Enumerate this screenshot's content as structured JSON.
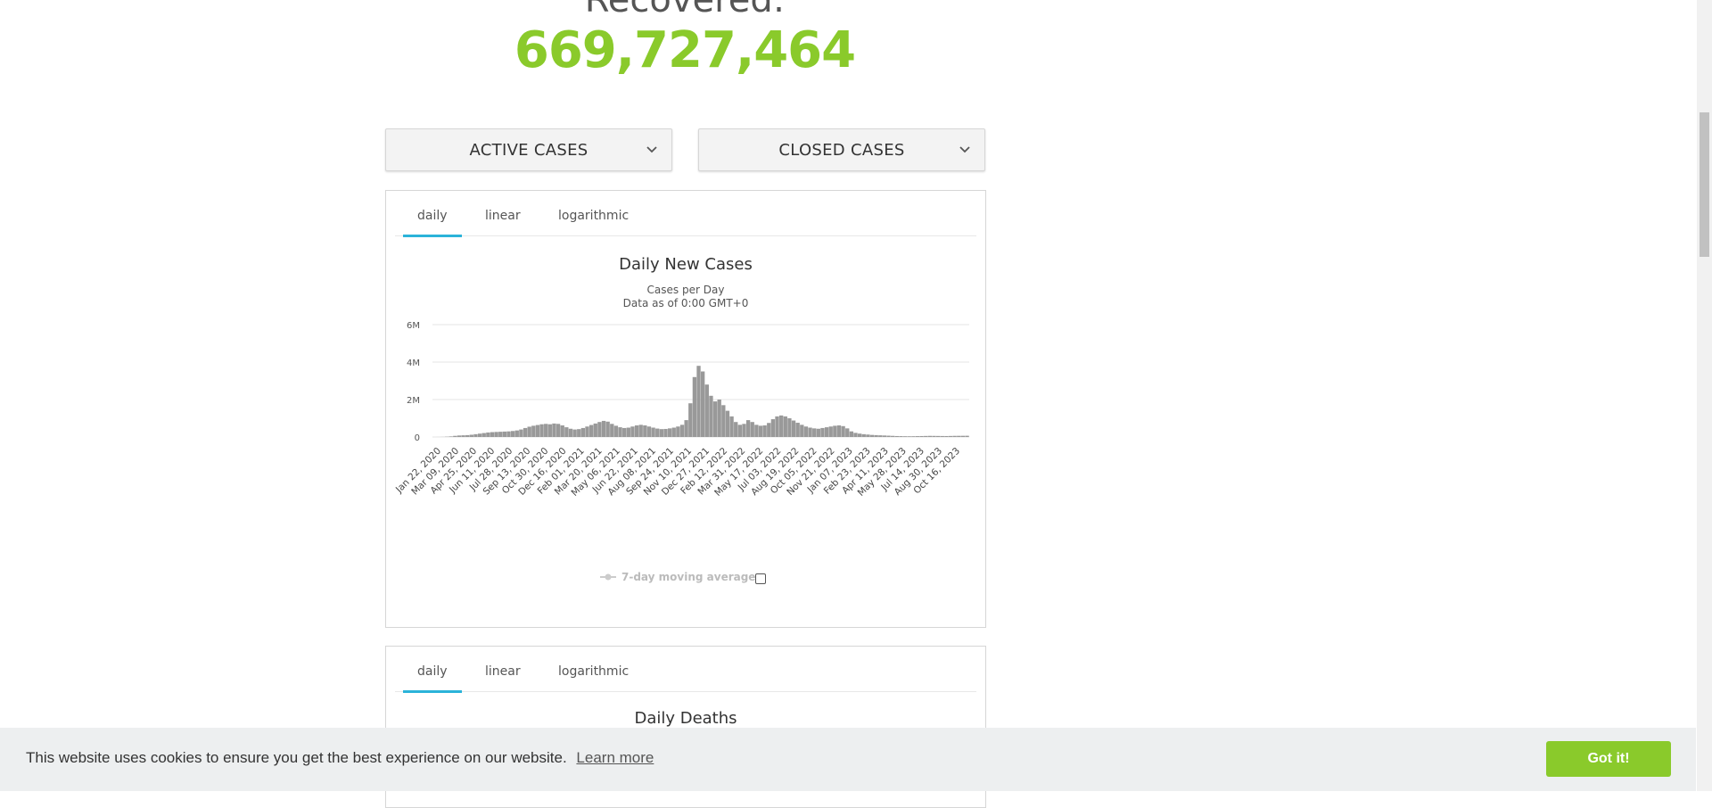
{
  "recovered": {
    "label": "Recovered:",
    "value": "669,727,464",
    "color": "#8ACA2B"
  },
  "dropdowns": {
    "active_cases": "ACTIVE CASES",
    "closed_cases": "CLOSED CASES"
  },
  "cases_panel": {
    "tabs": [
      "daily",
      "linear",
      "logarithmic"
    ],
    "active_tab": "daily",
    "legend": {
      "label": "7-day moving average",
      "checked": false
    }
  },
  "deaths_panel": {
    "tabs": [
      "daily",
      "linear",
      "logarithmic"
    ],
    "active_tab": "daily",
    "title": "Daily Deaths"
  },
  "chart_data": {
    "type": "bar",
    "title": "Daily New Cases",
    "subtitle": [
      "Cases per Day",
      "Data as of 0:00 GMT+0"
    ],
    "xlabel": "",
    "ylabel": "",
    "ylim": [
      0,
      6000000
    ],
    "y_ticks": [
      "0",
      "2M",
      "4M",
      "6M"
    ],
    "y_tick_values": [
      0,
      2000000,
      4000000,
      6000000
    ],
    "grid": true,
    "x_tick_labels": [
      "Jan 22, 2020",
      "Mar 09, 2020",
      "Apr 25, 2020",
      "Jun 11, 2020",
      "Jul 28, 2020",
      "Sep 13, 2020",
      "Oct 30, 2020",
      "Dec 16, 2020",
      "Feb 01, 2021",
      "Mar 20, 2021",
      "May 06, 2021",
      "Jun 22, 2021",
      "Aug 08, 2021",
      "Sep 24, 2021",
      "Nov 10, 2021",
      "Dec 27, 2021",
      "Feb 12, 2022",
      "Mar 31, 2022",
      "May 17, 2022",
      "Jul 03, 2022",
      "Aug 19, 2022",
      "Oct 05, 2022",
      "Nov 21, 2022",
      "Jan 07, 2023",
      "Feb 23, 2023",
      "Apr 11, 2023",
      "May 28, 2023",
      "Jul 14, 2023",
      "Aug 30, 2023",
      "Oct 16, 2023"
    ],
    "series": [
      {
        "color": "#999999",
        "values": [
          0,
          2000,
          5000,
          15000,
          30000,
          60000,
          80000,
          90000,
          100000,
          120000,
          150000,
          180000,
          210000,
          240000,
          260000,
          270000,
          280000,
          290000,
          300000,
          320000,
          350000,
          400000,
          480000,
          550000,
          600000,
          640000,
          680000,
          700000,
          680000,
          720000,
          700000,
          620000,
          520000,
          440000,
          400000,
          420000,
          480000,
          560000,
          640000,
          720000,
          800000,
          860000,
          820000,
          700000,
          600000,
          520000,
          480000,
          500000,
          560000,
          620000,
          650000,
          620000,
          560000,
          500000,
          450000,
          420000,
          430000,
          460000,
          500000,
          560000,
          650000,
          900000,
          1800000,
          3200000,
          3800000,
          3500000,
          2800000,
          2200000,
          1900000,
          2000000,
          1700000,
          1400000,
          1100000,
          800000,
          650000,
          700000,
          900000,
          800000,
          650000,
          600000,
          620000,
          750000,
          950000,
          1100000,
          1150000,
          1100000,
          1000000,
          880000,
          760000,
          650000,
          560000,
          500000,
          460000,
          440000,
          480000,
          520000,
          560000,
          600000,
          620000,
          580000,
          460000,
          300000,
          220000,
          180000,
          150000,
          130000,
          110000,
          100000,
          90000,
          80000,
          70000,
          60000,
          50000,
          45000,
          40000,
          38000,
          40000,
          45000,
          50000,
          55000,
          60000,
          58000,
          55000,
          52000,
          50000,
          55000,
          60000,
          62000,
          64000,
          66000
        ]
      }
    ]
  }
}
